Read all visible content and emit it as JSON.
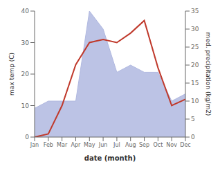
{
  "chart_data": {
    "type": "line",
    "categories": [
      "Jan",
      "Feb",
      "Mar",
      "Apr",
      "May",
      "Jun",
      "Jul",
      "Aug",
      "Sep",
      "Oct",
      "Nov",
      "Dec"
    ],
    "xlabel": "date (month)",
    "ylabel": "max temp (C)",
    "y2label": "med. precipitation (kg/m2)",
    "ylim": [
      0,
      40
    ],
    "yticks": [
      0,
      10,
      20,
      30,
      40
    ],
    "y2lim": [
      0,
      35
    ],
    "y2ticks": [
      0,
      5,
      10,
      15,
      20,
      25,
      30,
      35
    ],
    "grid": false,
    "series": [
      {
        "type": "area",
        "axis": "y2",
        "color": "#b0b8e0",
        "values": [
          8,
          10,
          10,
          10,
          35,
          30,
          18,
          20,
          18,
          18,
          10,
          12
        ]
      },
      {
        "type": "line",
        "color": "#c0392b",
        "values": [
          0,
          1,
          10,
          23,
          30,
          31,
          30,
          33,
          37,
          22,
          10,
          12
        ]
      }
    ]
  }
}
